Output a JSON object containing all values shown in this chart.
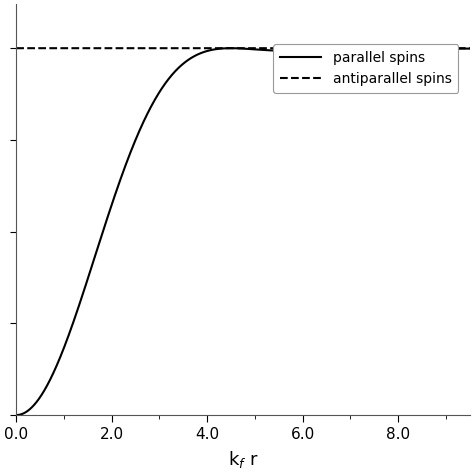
{
  "title": "",
  "xlabel": "k$_f$ r",
  "ylabel": "",
  "xlim": [
    0,
    9.5
  ],
  "ylim": [
    0.0,
    1.12
  ],
  "xticks": [
    0.0,
    2.0,
    4.0,
    6.0,
    8.0
  ],
  "xtick_labels": [
    "0.0",
    "2.0",
    "4.0",
    "6.0",
    "8.0"
  ],
  "legend_labels": [
    "parallel spins",
    "antiparallel spins"
  ],
  "line_color": "#000000",
  "background_color": "#ffffff",
  "figsize": [
    4.74,
    4.74
  ],
  "dpi": 100
}
